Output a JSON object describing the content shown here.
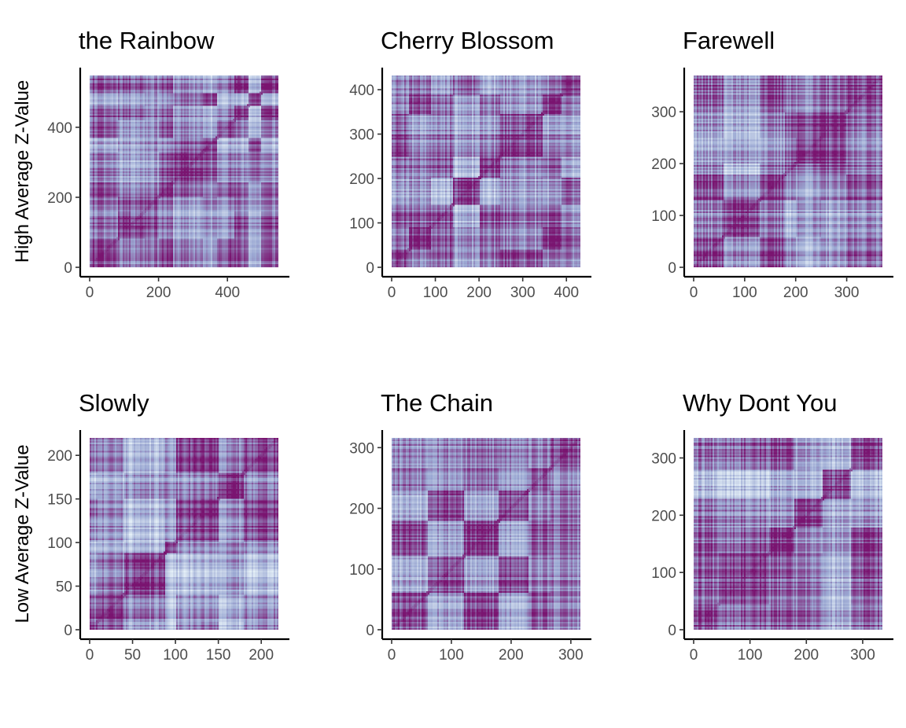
{
  "chart_data": {
    "type": "heatmap",
    "colors": {
      "low": "#e6f1f8",
      "mid": "#9aa7d2",
      "high": "#7a1470",
      "axis": "#000000",
      "tick_text": "#4d4d4d"
    },
    "row_labels": [
      "High Average Z-Value",
      "Low Average Z-Value"
    ],
    "panels": [
      {
        "title": "the Rainbow",
        "row": 0,
        "col": 0,
        "n": 548,
        "xlim": [
          0,
          548
        ],
        "ylim": [
          0,
          548
        ],
        "xticks": [
          0,
          200,
          400
        ],
        "yticks": [
          0,
          200,
          400
        ],
        "blocks": [
          0,
          80,
          120,
          160,
          200,
          240,
          285,
          330,
          370,
          420,
          460,
          500,
          548
        ],
        "seed": 11
      },
      {
        "title": "Cherry Blossom",
        "row": 0,
        "col": 1,
        "n": 432,
        "xlim": [
          0,
          432
        ],
        "ylim": [
          0,
          432
        ],
        "xticks": [
          0,
          100,
          200,
          300,
          400
        ],
        "yticks": [
          0,
          100,
          200,
          300,
          400
        ],
        "blocks": [
          0,
          40,
          90,
          140,
          200,
          250,
          300,
          345,
          390,
          432
        ],
        "seed": 23
      },
      {
        "title": "Farewell",
        "row": 0,
        "col": 2,
        "n": 370,
        "xlim": [
          0,
          370
        ],
        "ylim": [
          0,
          370
        ],
        "xticks": [
          0,
          100,
          200,
          300
        ],
        "yticks": [
          0,
          100,
          200,
          300
        ],
        "blocks": [
          0,
          60,
          130,
          180,
          200,
          250,
          300,
          370
        ],
        "seed": 37
      },
      {
        "title": "Slowly",
        "row": 1,
        "col": 0,
        "n": 220,
        "xlim": [
          0,
          220
        ],
        "ylim": [
          0,
          220
        ],
        "xticks": [
          0,
          50,
          100,
          150,
          200
        ],
        "yticks": [
          0,
          50,
          100,
          150,
          200
        ],
        "blocks": [
          0,
          10,
          40,
          88,
          100,
          130,
          150,
          180,
          220
        ],
        "seed": 41
      },
      {
        "title": "The Chain",
        "row": 1,
        "col": 1,
        "n": 316,
        "xlim": [
          0,
          316
        ],
        "ylim": [
          0,
          316
        ],
        "xticks": [
          0,
          100,
          200,
          300
        ],
        "yticks": [
          0,
          100,
          200,
          300
        ],
        "blocks": [
          0,
          60,
          120,
          180,
          230,
          265,
          316
        ],
        "seed": 53
      },
      {
        "title": "Why Dont You",
        "row": 1,
        "col": 2,
        "n": 335,
        "xlim": [
          0,
          335
        ],
        "ylim": [
          0,
          335
        ],
        "xticks": [
          0,
          100,
          200,
          300
        ],
        "yticks": [
          0,
          100,
          200,
          300
        ],
        "blocks": [
          0,
          45,
          90,
          135,
          180,
          230,
          280,
          335
        ],
        "seed": 67
      }
    ]
  }
}
